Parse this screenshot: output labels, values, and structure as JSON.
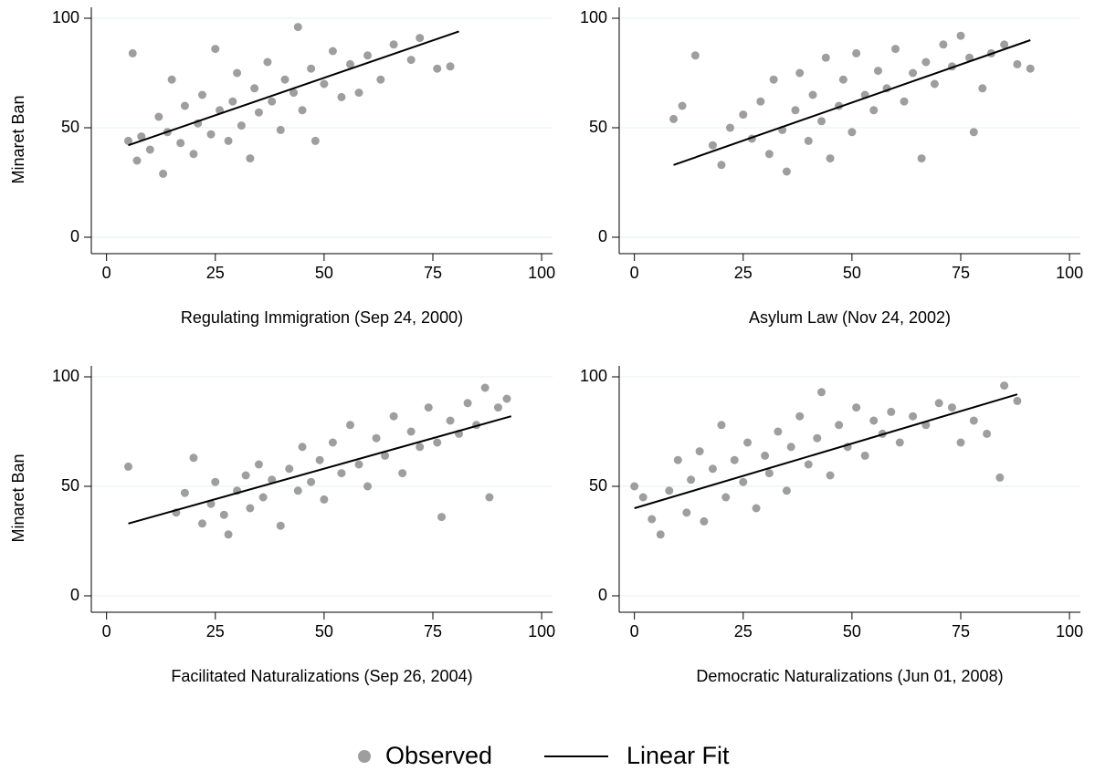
{
  "chart_data": [
    {
      "type": "scatter",
      "x_label": "Regulating Immigration (Sep 24, 2000)",
      "y_label": "Minaret Ban",
      "xlim": [
        -3.5,
        102.5
      ],
      "ylim": [
        -7.5,
        105
      ],
      "xticks": [
        0,
        25,
        50,
        75,
        100
      ],
      "yticks": [
        0,
        50,
        100
      ],
      "grid": true,
      "series": [
        {
          "name": "Observed",
          "color": "#9e9e9e",
          "x": [
            5,
            6,
            7,
            8,
            10,
            12,
            13,
            14,
            15,
            17,
            18,
            20,
            21,
            22,
            24,
            25,
            26,
            28,
            29,
            30,
            31,
            33,
            34,
            35,
            37,
            38,
            40,
            41,
            43,
            44,
            45,
            47,
            48,
            50,
            52,
            54,
            56,
            58,
            60,
            63,
            66,
            70,
            72,
            76,
            79
          ],
          "values": [
            44,
            84,
            35,
            46,
            40,
            55,
            29,
            48,
            72,
            43,
            60,
            38,
            52,
            65,
            47,
            86,
            58,
            44,
            62,
            75,
            51,
            36,
            68,
            57,
            80,
            62,
            49,
            72,
            66,
            96,
            58,
            77,
            44,
            70,
            85,
            64,
            79,
            66,
            83,
            72,
            88,
            81,
            91,
            77,
            78
          ]
        },
        {
          "name": "Linear Fit",
          "type": "line",
          "color": "#000000",
          "x": [
            5,
            81
          ],
          "values": [
            42,
            94
          ]
        }
      ]
    },
    {
      "type": "scatter",
      "x_label": "Asylum Law (Nov 24, 2002)",
      "xlim": [
        -3.5,
        102.5
      ],
      "ylim": [
        -7.5,
        105
      ],
      "xticks": [
        0,
        25,
        50,
        75,
        100
      ],
      "yticks": [
        0,
        50,
        100
      ],
      "grid": true,
      "series": [
        {
          "color": "#9e9e9e",
          "x": [
            9,
            11,
            14,
            18,
            20,
            22,
            25,
            27,
            29,
            31,
            32,
            34,
            35,
            37,
            38,
            40,
            41,
            43,
            44,
            45,
            47,
            48,
            50,
            51,
            53,
            55,
            56,
            58,
            60,
            62,
            64,
            66,
            67,
            69,
            71,
            73,
            75,
            77,
            78,
            80,
            82,
            85,
            88,
            91
          ],
          "values": [
            54,
            60,
            83,
            42,
            33,
            50,
            56,
            45,
            62,
            38,
            72,
            49,
            30,
            58,
            75,
            44,
            65,
            53,
            82,
            36,
            60,
            72,
            48,
            84,
            65,
            58,
            76,
            68,
            86,
            62,
            75,
            36,
            80,
            70,
            88,
            78,
            92,
            82,
            48,
            68,
            84,
            88,
            79,
            77
          ]
        },
        {
          "type": "line",
          "color": "#000000",
          "x": [
            9,
            91
          ],
          "values": [
            33,
            90
          ]
        }
      ]
    },
    {
      "type": "scatter",
      "x_label": "Facilitated Naturalizations (Sep 26, 2004)",
      "y_label": "Minaret Ban",
      "xlim": [
        -3.5,
        102.5
      ],
      "ylim": [
        -7.5,
        105
      ],
      "xticks": [
        0,
        25,
        50,
        75,
        100
      ],
      "yticks": [
        0,
        50,
        100
      ],
      "grid": true,
      "series": [
        {
          "color": "#9e9e9e",
          "x": [
            5,
            16,
            18,
            20,
            22,
            24,
            25,
            27,
            28,
            30,
            32,
            33,
            35,
            36,
            38,
            40,
            42,
            44,
            45,
            47,
            49,
            50,
            52,
            54,
            56,
            58,
            60,
            62,
            64,
            66,
            68,
            70,
            72,
            74,
            76,
            77,
            79,
            81,
            83,
            85,
            87,
            88,
            90,
            92
          ],
          "values": [
            59,
            38,
            47,
            63,
            33,
            42,
            52,
            37,
            28,
            48,
            55,
            40,
            60,
            45,
            53,
            32,
            58,
            48,
            68,
            52,
            62,
            44,
            70,
            56,
            78,
            60,
            50,
            72,
            64,
            82,
            56,
            75,
            68,
            86,
            70,
            36,
            80,
            74,
            88,
            78,
            95,
            45,
            86,
            90
          ]
        },
        {
          "type": "line",
          "color": "#000000",
          "x": [
            5,
            93
          ],
          "values": [
            33,
            82
          ]
        }
      ]
    },
    {
      "type": "scatter",
      "x_label": "Democratic Naturalizations (Jun 01, 2008)",
      "xlim": [
        -3.5,
        102.5
      ],
      "ylim": [
        -7.5,
        105
      ],
      "xticks": [
        0,
        25,
        50,
        75,
        100
      ],
      "yticks": [
        0,
        50,
        100
      ],
      "grid": true,
      "series": [
        {
          "color": "#9e9e9e",
          "x": [
            0,
            2,
            4,
            6,
            8,
            10,
            12,
            13,
            15,
            16,
            18,
            20,
            21,
            23,
            25,
            26,
            28,
            30,
            31,
            33,
            35,
            36,
            38,
            40,
            42,
            43,
            45,
            47,
            49,
            51,
            53,
            55,
            57,
            59,
            61,
            64,
            67,
            70,
            73,
            75,
            78,
            81,
            84,
            85,
            88
          ],
          "values": [
            50,
            45,
            35,
            28,
            48,
            62,
            38,
            53,
            66,
            34,
            58,
            78,
            45,
            62,
            52,
            70,
            40,
            64,
            56,
            75,
            48,
            68,
            82,
            60,
            72,
            93,
            55,
            78,
            68,
            86,
            64,
            80,
            74,
            84,
            70,
            82,
            78,
            88,
            86,
            70,
            80,
            74,
            54,
            96,
            89
          ]
        },
        {
          "type": "line",
          "color": "#000000",
          "x": [
            0,
            88
          ],
          "values": [
            40,
            92
          ]
        }
      ]
    }
  ]
}
